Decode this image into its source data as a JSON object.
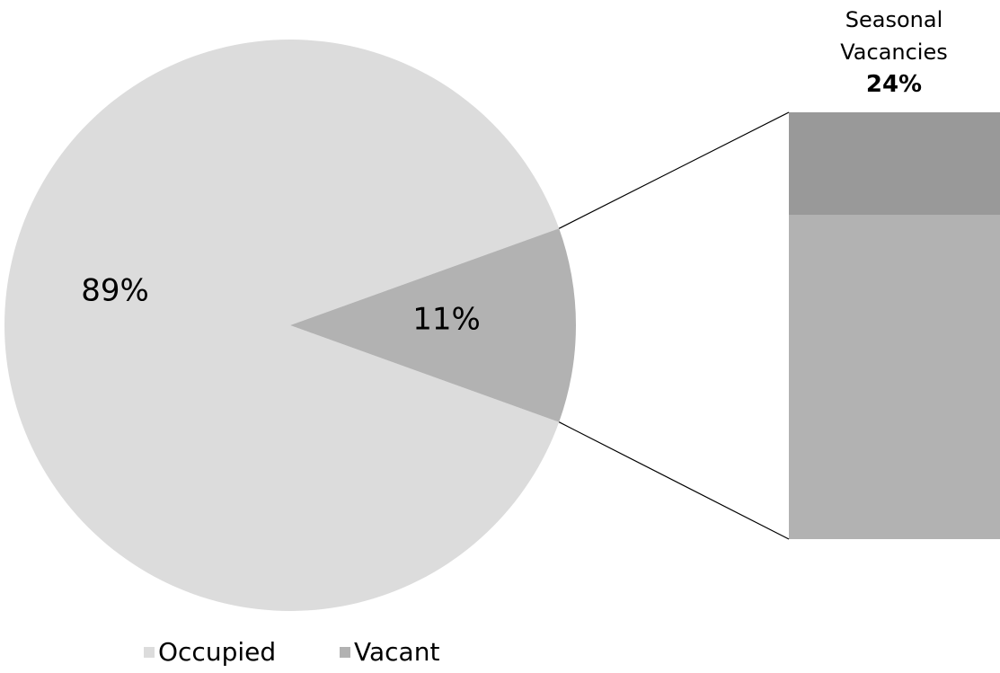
{
  "chart_data": {
    "type": "pie-of-bar",
    "categories": [
      "Occupied",
      "Vacant"
    ],
    "values": [
      89,
      11
    ],
    "value_labels": [
      "89%",
      "11%"
    ],
    "colors": [
      "#dcdcdc",
      "#b2b2b2"
    ],
    "breakdown": {
      "categories": [
        "Seasonal Vacancies",
        null
      ],
      "values": [
        24,
        76
      ],
      "value_labels": [
        "24%",
        null
      ],
      "colors": [
        "#999999",
        "#b2b2b2"
      ]
    },
    "legend": "bottom"
  }
}
